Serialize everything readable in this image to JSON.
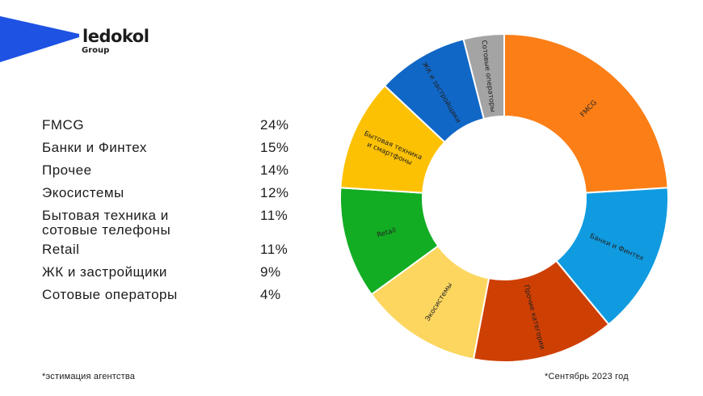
{
  "brand": {
    "name": "ledokol",
    "sub": "Group",
    "color": "#1d52e3"
  },
  "legend": [
    {
      "label": "FMCG",
      "value": "24%"
    },
    {
      "label": "Банки и Финтех",
      "value": "15%"
    },
    {
      "label": "Прочее",
      "value": "14%"
    },
    {
      "label": "Экосистемы",
      "value": "12%"
    },
    {
      "label": "Бытовая техника и сотовые телефоны",
      "value": "11%"
    },
    {
      "label": "Retail",
      "value": "11%"
    },
    {
      "label": "ЖК и застройщики",
      "value": "9%"
    },
    {
      "label": "Сотовые операторы",
      "value": "4%"
    }
  ],
  "footnotes": {
    "left": "*эстимация агентства",
    "right": "*Сентябрь 2023 год"
  },
  "chart_data": {
    "type": "pie",
    "donut": true,
    "slices": [
      {
        "label": "FMCG",
        "value": 24,
        "color": "#fb7e16"
      },
      {
        "label": "Банки и Финтех",
        "value": 15,
        "color": "#109be0"
      },
      {
        "label": "Прочие категории",
        "value": 14,
        "color": "#ce3f04"
      },
      {
        "label": "Экосистемы",
        "value": 12,
        "color": "#fcd65f"
      },
      {
        "label": "Retail",
        "value": 11,
        "color": "#12ad23"
      },
      {
        "label": "Бытовая техника и смартфоны",
        "value": 11,
        "color": "#fdc104"
      },
      {
        "label": "ЖК и застройщики",
        "value": 9,
        "color": "#1167c6"
      },
      {
        "label": "Сотовые операторы",
        "value": 4,
        "color": "#a4a4a4"
      }
    ]
  }
}
